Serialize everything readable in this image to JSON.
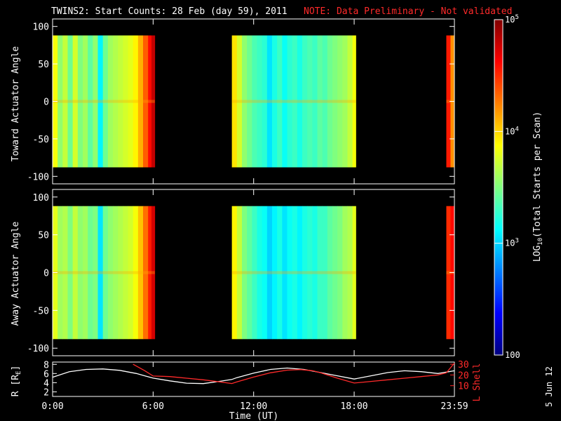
{
  "title": {
    "main": "TWINS2: Start Counts: 28 Feb (day  59), 2011",
    "note": "NOTE: Data Preliminary - Not validated"
  },
  "stamp": "5 Jun 12",
  "colors": {
    "background": "#000000",
    "axes": "#ffffff",
    "lshell": "#ff2a2a",
    "colormap": [
      "#00007f",
      "#0000ff",
      "#007fff",
      "#00ffff",
      "#7fff7f",
      "#ffff00",
      "#ff7f00",
      "#ff0000",
      "#7f0000"
    ]
  },
  "chart_data": [
    {
      "type": "heatmap",
      "panel": "top",
      "ylabel": "Toward Actuator Angle",
      "ylim": [
        -110,
        110
      ],
      "yticks": [
        100,
        50,
        0,
        -50,
        -100
      ],
      "data_y_range": [
        -88,
        88
      ],
      "x_unit": "hours UT",
      "xlim": [
        0,
        23.983
      ],
      "data_blocks": [
        {
          "x_start": 0.0,
          "x_end": 6.1
        },
        {
          "x_start": 10.7,
          "x_end": 18.1
        },
        {
          "x_start": 23.5,
          "x_end": 23.983
        }
      ],
      "columns": [
        {
          "x": 0.0,
          "log": 3.85
        },
        {
          "x": 0.3,
          "log": 3.55
        },
        {
          "x": 0.6,
          "log": 3.7
        },
        {
          "x": 0.9,
          "log": 3.45
        },
        {
          "x": 1.2,
          "log": 3.75
        },
        {
          "x": 1.5,
          "log": 3.5
        },
        {
          "x": 1.8,
          "log": 3.6
        },
        {
          "x": 2.1,
          "log": 3.4
        },
        {
          "x": 2.4,
          "log": 3.55
        },
        {
          "x": 2.7,
          "log": 3.1
        },
        {
          "x": 3.0,
          "log": 3.45
        },
        {
          "x": 3.3,
          "log": 3.6
        },
        {
          "x": 3.6,
          "log": 3.65
        },
        {
          "x": 3.9,
          "log": 3.7
        },
        {
          "x": 4.2,
          "log": 3.75
        },
        {
          "x": 4.5,
          "log": 3.8
        },
        {
          "x": 4.8,
          "log": 3.9
        },
        {
          "x": 5.1,
          "log": 4.1
        },
        {
          "x": 5.4,
          "log": 4.35
        },
        {
          "x": 5.7,
          "log": 4.6
        },
        {
          "x": 5.9,
          "log": 4.8
        },
        {
          "x": 10.7,
          "log": 3.95
        },
        {
          "x": 11.0,
          "log": 3.75
        },
        {
          "x": 11.3,
          "log": 3.55
        },
        {
          "x": 11.6,
          "log": 3.45
        },
        {
          "x": 11.9,
          "log": 3.35
        },
        {
          "x": 12.2,
          "log": 3.3
        },
        {
          "x": 12.5,
          "log": 3.25
        },
        {
          "x": 12.8,
          "log": 3.05
        },
        {
          "x": 13.1,
          "log": 3.2
        },
        {
          "x": 13.4,
          "log": 3.3
        },
        {
          "x": 13.7,
          "log": 3.15
        },
        {
          "x": 14.0,
          "log": 3.25
        },
        {
          "x": 14.3,
          "log": 3.3
        },
        {
          "x": 14.6,
          "log": 3.2
        },
        {
          "x": 14.9,
          "log": 3.3
        },
        {
          "x": 15.2,
          "log": 3.35
        },
        {
          "x": 15.5,
          "log": 3.3
        },
        {
          "x": 15.8,
          "log": 3.4
        },
        {
          "x": 16.1,
          "log": 3.35
        },
        {
          "x": 16.4,
          "log": 3.45
        },
        {
          "x": 16.7,
          "log": 3.5
        },
        {
          "x": 17.0,
          "log": 3.55
        },
        {
          "x": 17.3,
          "log": 3.6
        },
        {
          "x": 17.6,
          "log": 3.7
        },
        {
          "x": 17.9,
          "log": 3.85
        },
        {
          "x": 23.5,
          "log": 4.55
        },
        {
          "x": 23.75,
          "log": 4.2
        }
      ]
    },
    {
      "type": "heatmap",
      "panel": "middle",
      "ylabel": "Away Actuator Angle",
      "ylim": [
        -110,
        110
      ],
      "yticks": [
        100,
        50,
        0,
        -50,
        -100
      ],
      "data_y_range": [
        -88,
        88
      ],
      "x_unit": "hours UT",
      "xlim": [
        0,
        23.983
      ],
      "data_blocks": [
        {
          "x_start": 0.0,
          "x_end": 6.1
        },
        {
          "x_start": 10.7,
          "x_end": 18.1
        },
        {
          "x_start": 23.5,
          "x_end": 23.983
        }
      ],
      "columns": [
        {
          "x": 0.0,
          "log": 3.8
        },
        {
          "x": 0.3,
          "log": 3.6
        },
        {
          "x": 0.6,
          "log": 3.65
        },
        {
          "x": 0.9,
          "log": 3.5
        },
        {
          "x": 1.2,
          "log": 3.7
        },
        {
          "x": 1.5,
          "log": 3.55
        },
        {
          "x": 1.8,
          "log": 3.6
        },
        {
          "x": 2.1,
          "log": 3.45
        },
        {
          "x": 2.4,
          "log": 3.5
        },
        {
          "x": 2.7,
          "log": 3.05
        },
        {
          "x": 3.0,
          "log": 3.45
        },
        {
          "x": 3.3,
          "log": 3.55
        },
        {
          "x": 3.6,
          "log": 3.6
        },
        {
          "x": 3.9,
          "log": 3.65
        },
        {
          "x": 4.2,
          "log": 3.7
        },
        {
          "x": 4.5,
          "log": 3.75
        },
        {
          "x": 4.8,
          "log": 3.85
        },
        {
          "x": 5.1,
          "log": 4.05
        },
        {
          "x": 5.4,
          "log": 4.3
        },
        {
          "x": 5.7,
          "log": 4.55
        },
        {
          "x": 5.9,
          "log": 4.75
        },
        {
          "x": 10.7,
          "log": 3.9
        },
        {
          "x": 11.0,
          "log": 3.7
        },
        {
          "x": 11.3,
          "log": 3.5
        },
        {
          "x": 11.6,
          "log": 3.4
        },
        {
          "x": 11.9,
          "log": 3.3
        },
        {
          "x": 12.2,
          "log": 3.2
        },
        {
          "x": 12.5,
          "log": 3.15
        },
        {
          "x": 12.8,
          "log": 3.0
        },
        {
          "x": 13.1,
          "log": 3.1
        },
        {
          "x": 13.4,
          "log": 3.2
        },
        {
          "x": 13.7,
          "log": 3.05
        },
        {
          "x": 14.0,
          "log": 3.15
        },
        {
          "x": 14.3,
          "log": 3.2
        },
        {
          "x": 14.6,
          "log": 3.1
        },
        {
          "x": 14.9,
          "log": 3.2
        },
        {
          "x": 15.2,
          "log": 3.25
        },
        {
          "x": 15.5,
          "log": 3.2
        },
        {
          "x": 15.8,
          "log": 3.3
        },
        {
          "x": 16.1,
          "log": 3.3
        },
        {
          "x": 16.4,
          "log": 3.4
        },
        {
          "x": 16.7,
          "log": 3.45
        },
        {
          "x": 17.0,
          "log": 3.5
        },
        {
          "x": 17.3,
          "log": 3.6
        },
        {
          "x": 17.6,
          "log": 3.65
        },
        {
          "x": 17.9,
          "log": 3.8
        },
        {
          "x": 23.5,
          "log": 4.5
        },
        {
          "x": 23.75,
          "log": 4.6
        }
      ]
    },
    {
      "type": "line",
      "panel": "bottom",
      "xlabel": "Time (UT)",
      "ylabel": "R [R",
      "ylabel_sub": "E",
      "ylabel_end": "]",
      "y2label": "L Shell",
      "xlim": [
        0,
        23.983
      ],
      "ylim": [
        1,
        8.5
      ],
      "y2lim": [
        0,
        32
      ],
      "yticks": [
        "8",
        "6",
        "4",
        "2"
      ],
      "y2ticks": [
        "30",
        "20",
        "10"
      ],
      "xticks": [
        {
          "value": 0,
          "label": "0:00"
        },
        {
          "value": 6,
          "label": "6:00"
        },
        {
          "value": 12,
          "label": "12:00"
        },
        {
          "value": 18,
          "label": "18:00"
        },
        {
          "value": 23.983,
          "label": "23:59"
        }
      ],
      "series": [
        {
          "axis": "left",
          "color": "#ffffff",
          "x": [
            0,
            1,
            2,
            3,
            4,
            5,
            5.5,
            6,
            7,
            8,
            9,
            10,
            10.7,
            11,
            12,
            13,
            14,
            15,
            16,
            17,
            18,
            19,
            20,
            21,
            22,
            23,
            23.983
          ],
          "y": [
            5.2,
            6.4,
            6.9,
            7.0,
            6.7,
            6.0,
            5.5,
            5.0,
            4.4,
            3.9,
            3.8,
            4.3,
            4.7,
            5.1,
            6.1,
            6.9,
            7.2,
            6.9,
            6.2,
            5.5,
            4.8,
            5.5,
            6.2,
            6.6,
            6.4,
            6.0,
            6.6
          ]
        },
        {
          "axis": "right",
          "color": "#ff2a2a",
          "x": [
            4.8,
            5.5,
            6.0,
            7,
            8,
            9,
            10,
            10.7,
            11,
            12,
            13,
            14,
            14.8,
            15.5,
            16,
            17,
            18,
            19,
            20,
            21,
            22,
            23,
            23.5,
            23.983
          ],
          "y": [
            30,
            24,
            19,
            18.5,
            17,
            15.5,
            13.5,
            12,
            13.5,
            18,
            22,
            24.5,
            25,
            24,
            22,
            17,
            12.5,
            14,
            15.5,
            17,
            18.5,
            20,
            22,
            31
          ]
        }
      ]
    }
  ],
  "colorbar": {
    "label_prefix": "LOG",
    "label_sub": "10",
    "label_suffix": "(Total Starts per Scan)",
    "log_range": [
      2,
      5
    ],
    "ticks": [
      {
        "log": 5,
        "base": "10",
        "exp": "5",
        "label": ""
      },
      {
        "log": 4,
        "base": "10",
        "exp": "4",
        "label": ""
      },
      {
        "log": 3,
        "base": "10",
        "exp": "3",
        "label": ""
      },
      {
        "log": 2,
        "base": "",
        "exp": "",
        "label": "100"
      }
    ]
  }
}
